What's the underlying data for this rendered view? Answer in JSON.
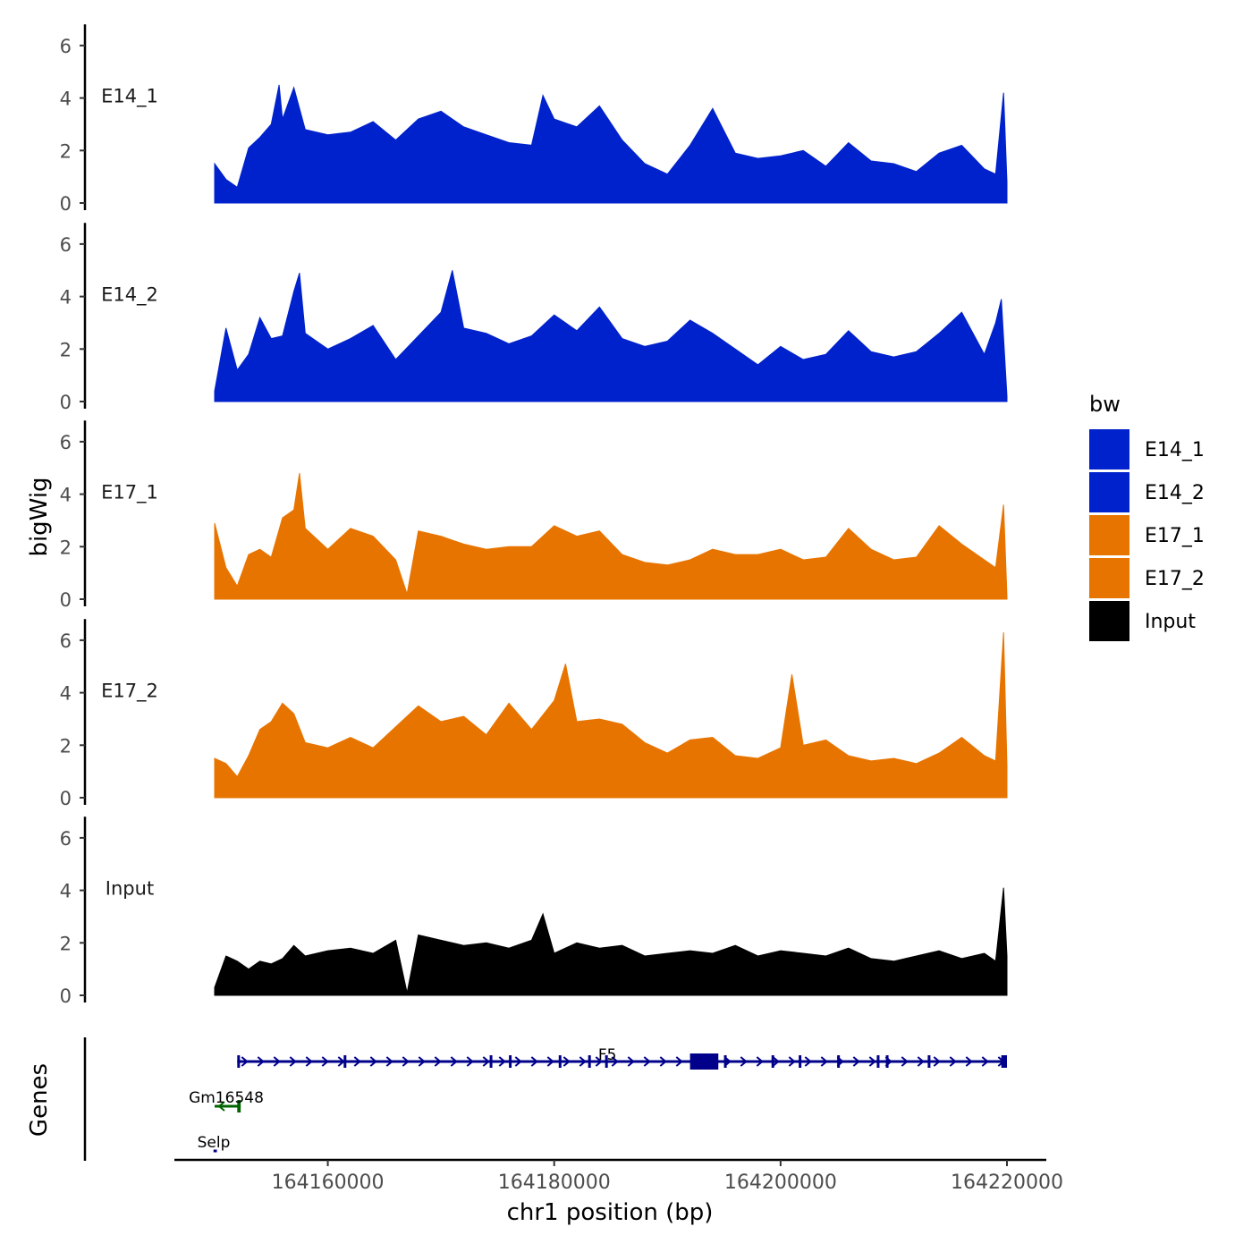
{
  "chart_data": {
    "type": "area",
    "title": "",
    "xlabel": "chr1 position (bp)",
    "ylabel": "bigWig",
    "genes_label": "Genes",
    "x_range": [
      164150000,
      164220000
    ],
    "x_ticks": [
      164160000,
      164180000,
      164200000,
      164220000
    ],
    "x_tick_labels": [
      "164160000",
      "164180000",
      "164200000",
      "164220000"
    ],
    "y_ticks": [
      0,
      2,
      4,
      6
    ],
    "y_tick_labels": [
      "0",
      "2",
      "4",
      "6"
    ],
    "ylim": [
      0,
      6.6
    ],
    "legend": {
      "title": "bw",
      "position": "right",
      "entries": [
        {
          "label": "E14_1",
          "color": "#0022CC"
        },
        {
          "label": "E14_2",
          "color": "#0022CC"
        },
        {
          "label": "E17_1",
          "color": "#E87400"
        },
        {
          "label": "E17_2",
          "color": "#E87400"
        },
        {
          "label": "Input",
          "color": "#000000"
        }
      ]
    },
    "series": [
      {
        "name": "E14_1",
        "color": "#0022CC",
        "x": [
          164150000,
          164151000,
          164152000,
          164153000,
          164154000,
          164155000,
          164155700,
          164156000,
          164157000,
          164158000,
          164160000,
          164162000,
          164164000,
          164166000,
          164168000,
          164170000,
          164172000,
          164174000,
          164176000,
          164178000,
          164179000,
          164180000,
          164182000,
          164184000,
          164186000,
          164188000,
          164190000,
          164192000,
          164194000,
          164196000,
          164198000,
          164200000,
          164202000,
          164204000,
          164206000,
          164208000,
          164210000,
          164212000,
          164214000,
          164216000,
          164218000,
          164219000,
          164219700,
          164220000
        ],
        "values": [
          1.5,
          0.9,
          0.6,
          2.1,
          2.5,
          3.0,
          4.5,
          3.2,
          4.4,
          2.8,
          2.6,
          2.7,
          3.1,
          2.4,
          3.2,
          3.5,
          2.9,
          2.6,
          2.3,
          2.2,
          4.1,
          3.2,
          2.9,
          3.7,
          2.4,
          1.5,
          1.1,
          2.2,
          3.6,
          1.9,
          1.7,
          1.8,
          2.0,
          1.4,
          2.3,
          1.6,
          1.5,
          1.2,
          1.9,
          2.2,
          1.3,
          1.1,
          4.2,
          0.8
        ]
      },
      {
        "name": "E14_2",
        "color": "#0022CC",
        "x": [
          164150000,
          164151000,
          164152000,
          164153000,
          164154000,
          164155000,
          164156000,
          164157000,
          164157500,
          164158000,
          164160000,
          164162000,
          164164000,
          164166000,
          164168000,
          164170000,
          164171000,
          164172000,
          164174000,
          164176000,
          164178000,
          164180000,
          164182000,
          164184000,
          164186000,
          164188000,
          164190000,
          164192000,
          164194000,
          164196000,
          164198000,
          164200000,
          164202000,
          164204000,
          164206000,
          164208000,
          164210000,
          164212000,
          164214000,
          164216000,
          164218000,
          164219000,
          164219500,
          164220000
        ],
        "values": [
          0.4,
          2.8,
          1.2,
          1.8,
          3.2,
          2.4,
          2.5,
          4.2,
          4.9,
          2.6,
          2.0,
          2.4,
          2.9,
          1.6,
          2.5,
          3.4,
          5.0,
          2.8,
          2.6,
          2.2,
          2.5,
          3.3,
          2.7,
          3.6,
          2.4,
          2.1,
          2.3,
          3.1,
          2.6,
          2.0,
          1.4,
          2.1,
          1.6,
          1.8,
          2.7,
          1.9,
          1.7,
          1.9,
          2.6,
          3.4,
          1.8,
          3.0,
          3.9,
          0.2
        ]
      },
      {
        "name": "E17_1",
        "color": "#E87400",
        "x": [
          164150000,
          164151000,
          164152000,
          164153000,
          164154000,
          164155000,
          164156000,
          164157000,
          164157500,
          164158000,
          164160000,
          164162000,
          164164000,
          164166000,
          164167000,
          164168000,
          164170000,
          164172000,
          164174000,
          164176000,
          164178000,
          164180000,
          164182000,
          164184000,
          164186000,
          164188000,
          164190000,
          164192000,
          164194000,
          164196000,
          164198000,
          164200000,
          164202000,
          164204000,
          164206000,
          164208000,
          164210000,
          164212000,
          164214000,
          164216000,
          164218000,
          164219000,
          164219700,
          164220000
        ],
        "values": [
          2.9,
          1.2,
          0.5,
          1.7,
          1.9,
          1.6,
          3.1,
          3.4,
          4.8,
          2.7,
          1.9,
          2.7,
          2.4,
          1.5,
          0.2,
          2.6,
          2.4,
          2.1,
          1.9,
          2.0,
          2.0,
          2.8,
          2.4,
          2.6,
          1.7,
          1.4,
          1.3,
          1.5,
          1.9,
          1.7,
          1.7,
          1.9,
          1.5,
          1.6,
          2.7,
          1.9,
          1.5,
          1.6,
          2.8,
          2.1,
          1.5,
          1.2,
          3.6,
          0.1
        ]
      },
      {
        "name": "E17_2",
        "color": "#E87400",
        "x": [
          164150000,
          164151000,
          164152000,
          164153000,
          164154000,
          164155000,
          164156000,
          164157000,
          164158000,
          164160000,
          164162000,
          164164000,
          164166000,
          164168000,
          164170000,
          164172000,
          164174000,
          164176000,
          164178000,
          164180000,
          164181000,
          164182000,
          164184000,
          164186000,
          164188000,
          164190000,
          164192000,
          164194000,
          164196000,
          164198000,
          164200000,
          164201000,
          164202000,
          164204000,
          164206000,
          164208000,
          164210000,
          164212000,
          164214000,
          164216000,
          164218000,
          164219000,
          164219700,
          164220000
        ],
        "values": [
          1.5,
          1.3,
          0.8,
          1.6,
          2.6,
          2.9,
          3.6,
          3.2,
          2.1,
          1.9,
          2.3,
          1.9,
          2.7,
          3.5,
          2.9,
          3.1,
          2.4,
          3.6,
          2.6,
          3.7,
          5.1,
          2.9,
          3.0,
          2.8,
          2.1,
          1.7,
          2.2,
          2.3,
          1.6,
          1.5,
          1.9,
          4.7,
          2.0,
          2.2,
          1.6,
          1.4,
          1.5,
          1.3,
          1.7,
          2.3,
          1.6,
          1.4,
          6.3,
          1.2
        ]
      },
      {
        "name": "Input",
        "color": "#000000",
        "x": [
          164150000,
          164151000,
          164152000,
          164153000,
          164154000,
          164155000,
          164156000,
          164157000,
          164158000,
          164160000,
          164162000,
          164164000,
          164166000,
          164167000,
          164168000,
          164170000,
          164172000,
          164174000,
          164176000,
          164178000,
          164179000,
          164180000,
          164182000,
          164184000,
          164186000,
          164188000,
          164190000,
          164192000,
          164194000,
          164196000,
          164198000,
          164200000,
          164202000,
          164204000,
          164206000,
          164208000,
          164210000,
          164212000,
          164214000,
          164216000,
          164218000,
          164219000,
          164219700,
          164220000
        ],
        "values": [
          0.3,
          1.5,
          1.3,
          1.0,
          1.3,
          1.2,
          1.4,
          1.9,
          1.5,
          1.7,
          1.8,
          1.6,
          2.1,
          0.1,
          2.3,
          2.1,
          1.9,
          2.0,
          1.8,
          2.1,
          3.1,
          1.6,
          2.0,
          1.8,
          1.9,
          1.5,
          1.6,
          1.7,
          1.6,
          1.9,
          1.5,
          1.7,
          1.6,
          1.5,
          1.8,
          1.4,
          1.3,
          1.5,
          1.7,
          1.4,
          1.6,
          1.3,
          4.1,
          1.5
        ]
      }
    ],
    "genes": [
      {
        "name": "F5",
        "strand": "+",
        "color": "#00008B",
        "start": 164152000,
        "end": 164220000,
        "exons": [
          [
            164152000,
            164152200
          ],
          [
            164161400,
            164161550
          ],
          [
            164174300,
            164174500
          ],
          [
            164176000,
            164176150
          ],
          [
            164180400,
            164180600
          ],
          [
            164183000,
            164183150
          ],
          [
            164184500,
            164184600
          ],
          [
            164192000,
            164194500
          ],
          [
            164195000,
            164195150
          ],
          [
            164199200,
            164199400
          ],
          [
            164201600,
            164201800
          ],
          [
            164205000,
            164205200
          ],
          [
            164208500,
            164208650
          ],
          [
            164209300,
            164209400
          ],
          [
            164213000,
            164213150
          ],
          [
            164219500,
            164220000
          ]
        ]
      },
      {
        "name": "Gm16548",
        "strand": "-",
        "color": "#006400",
        "start": 164150000,
        "end": 164152300,
        "exons": [
          [
            164152000,
            164152300
          ]
        ]
      },
      {
        "name": "Selp",
        "strand": "+",
        "color": "#00008B",
        "start": 164149900,
        "end": 164150200,
        "exons": []
      }
    ]
  }
}
